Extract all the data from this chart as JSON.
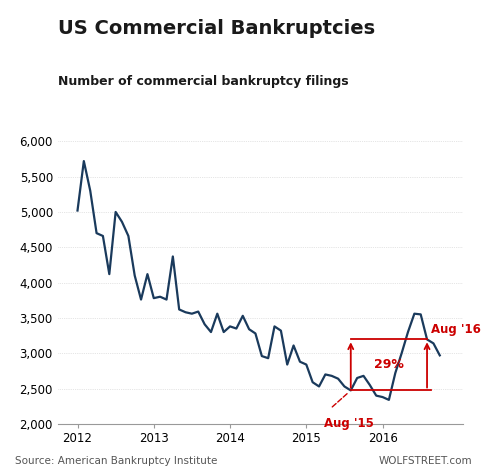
{
  "title": "US Commercial Bankruptcies",
  "subtitle": "Number of commercial bankruptcy filings",
  "source_left": "Source: American Bankruptcy Institute",
  "source_right": "WOLFSTREET.com",
  "line_color": "#1a3a5c",
  "annotation_color": "#cc0000",
  "background_color": "#ffffff",
  "ylim": [
    2000,
    6000
  ],
  "yticks": [
    2000,
    2500,
    3000,
    3500,
    4000,
    4500,
    5000,
    5500,
    6000
  ],
  "xlim": [
    2011.75,
    2017.05
  ],
  "aug15_value": 2474,
  "aug16_value": 3196,
  "aug15_x": 2015.583,
  "aug16_x": 2016.583,
  "months": [
    2012.0,
    2012.083,
    2012.167,
    2012.25,
    2012.333,
    2012.417,
    2012.5,
    2012.583,
    2012.667,
    2012.75,
    2012.833,
    2012.917,
    2013.0,
    2013.083,
    2013.167,
    2013.25,
    2013.333,
    2013.417,
    2013.5,
    2013.583,
    2013.667,
    2013.75,
    2013.833,
    2013.917,
    2014.0,
    2014.083,
    2014.167,
    2014.25,
    2014.333,
    2014.417,
    2014.5,
    2014.583,
    2014.667,
    2014.75,
    2014.833,
    2014.917,
    2015.0,
    2015.083,
    2015.167,
    2015.25,
    2015.333,
    2015.417,
    2015.5,
    2015.583,
    2015.667,
    2015.75,
    2015.833,
    2015.917,
    2016.0,
    2016.083,
    2016.167,
    2016.25,
    2016.333,
    2016.417,
    2016.5,
    2016.583,
    2016.667,
    2016.75
  ],
  "values": [
    5020,
    5720,
    5300,
    4700,
    4660,
    4120,
    5000,
    4860,
    4660,
    4100,
    3760,
    4120,
    3780,
    3800,
    3760,
    4370,
    3620,
    3580,
    3560,
    3590,
    3410,
    3300,
    3560,
    3300,
    3380,
    3350,
    3530,
    3340,
    3280,
    2960,
    2930,
    3380,
    3320,
    2840,
    3110,
    2880,
    2840,
    2590,
    2530,
    2700,
    2680,
    2640,
    2530,
    2474,
    2650,
    2680,
    2550,
    2400,
    2380,
    2340,
    2720,
    3000,
    3300,
    3560,
    3550,
    3196,
    3140,
    2970
  ]
}
